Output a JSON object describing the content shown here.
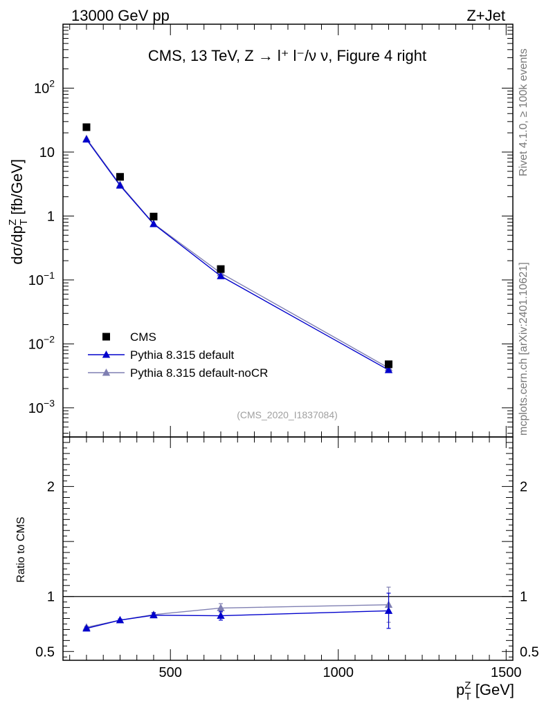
{
  "header": {
    "left": "13000 GeV pp",
    "right": "Z+Jet"
  },
  "side_labels": {
    "rivet": "Rivet 4.1.0, ≥ 100k events",
    "mcplots": "mcplots.cern.ch [arXiv:2401.10621]"
  },
  "chart_data": [
    {
      "type": "line",
      "panel": "main",
      "title": "CMS, 13 TeV, Z → l⁺ l⁻/ν ν, Figure 4 right",
      "watermark": "(CMS_2020_I1837084)",
      "ylabel": "dσ/dp_T^Z [fb/GeV]",
      "yscale": "log",
      "ylim": [
        0.00035,
        1000
      ],
      "xlim": [
        180,
        1520
      ],
      "x": [
        250,
        350,
        450,
        650,
        1150
      ],
      "y_ticks": [
        {
          "value": 0.001,
          "base": "10",
          "exp": "−3"
        },
        {
          "value": 0.01,
          "base": "10",
          "exp": "−2"
        },
        {
          "value": 0.1,
          "base": "10",
          "exp": "−1"
        },
        {
          "value": 1,
          "base": "1",
          "exp": ""
        },
        {
          "value": 10,
          "base": "10",
          "exp": ""
        },
        {
          "value": 100,
          "base": "10",
          "exp": "2"
        }
      ],
      "series": [
        {
          "name": "CMS",
          "marker": "square",
          "color": "#000000",
          "values": [
            24.5,
            4.1,
            0.98,
            0.148,
            0.0048
          ]
        },
        {
          "name": "Pythia 8.315 default",
          "marker": "triangle",
          "color": "#0000cc",
          "values": [
            15.8,
            3.0,
            0.75,
            0.115,
            0.0039
          ]
        },
        {
          "name": "Pythia 8.315 default-noCR",
          "marker": "triangle",
          "color": "#7f7fb2",
          "values": [
            16.2,
            3.1,
            0.76,
            0.128,
            0.0042
          ]
        }
      ]
    },
    {
      "type": "line",
      "panel": "ratio",
      "ylabel": "Ratio to CMS",
      "xlabel": "p_T^Z [GeV]",
      "ylim": [
        0.42,
        2.45
      ],
      "xlim": [
        180,
        1520
      ],
      "x": [
        250,
        350,
        450,
        650,
        1150
      ],
      "x_ticks": [
        "500",
        "1000",
        "1500"
      ],
      "y_ticks": [
        "0.5",
        "1",
        "2"
      ],
      "reference": 1,
      "series": [
        {
          "name": "Pythia 8.315 default",
          "color": "#0000cc",
          "values": [
            0.71,
            0.785,
            0.83,
            0.825,
            0.87
          ],
          "errors": [
            0.01,
            0.01,
            0.02,
            0.04,
            0.16
          ]
        },
        {
          "name": "Pythia 8.315 default-noCR",
          "color": "#7f7fb2",
          "values": [
            0.72,
            0.785,
            0.835,
            0.895,
            0.925
          ],
          "errors": [
            0.01,
            0.01,
            0.02,
            0.04,
            0.16
          ]
        }
      ]
    }
  ]
}
